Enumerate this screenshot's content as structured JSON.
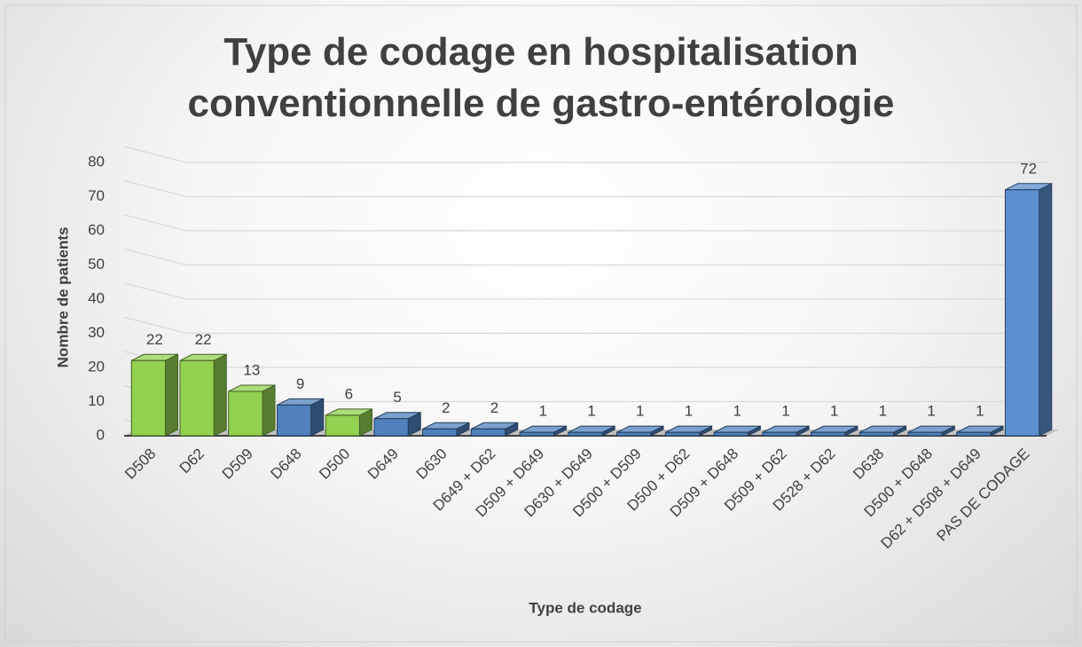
{
  "chart_data": {
    "type": "bar3d",
    "title": "Type de codage en hospitalisation conventionnelle de gastro-entérologie",
    "x_label": "Type de codage",
    "y_label": "Nombre de patients",
    "categories": [
      "D508",
      "D62",
      "D509",
      "D648",
      "D500",
      "D649",
      "D630",
      "D649 + D62",
      "D509 + D649",
      "D630 + D649",
      "D500 + D509",
      "D500 + D62",
      "D509 + D648",
      "D509 + D62",
      "D528 + D62",
      "D638",
      "D500 + D648",
      "D62 + D508 + D649",
      "PAS DE CODAGE"
    ],
    "values": [
      22,
      22,
      13,
      9,
      6,
      5,
      2,
      2,
      1,
      1,
      1,
      1,
      1,
      1,
      1,
      1,
      1,
      1,
      72
    ],
    "colors": [
      "#92d050",
      "#92d050",
      "#92d050",
      "#4f81bd",
      "#92d050",
      "#4f81bd",
      "#4f81bd",
      "#4f81bd",
      "#4f81bd",
      "#4f81bd",
      "#4f81bd",
      "#4f81bd",
      "#4f81bd",
      "#4f81bd",
      "#4f81bd",
      "#4f81bd",
      "#4f81bd",
      "#4f81bd",
      "#5b8fd0"
    ],
    "ylim": [
      0,
      80
    ],
    "yticks": [
      0,
      10,
      20,
      30,
      40,
      50,
      60,
      70,
      80
    ],
    "grid": true
  }
}
